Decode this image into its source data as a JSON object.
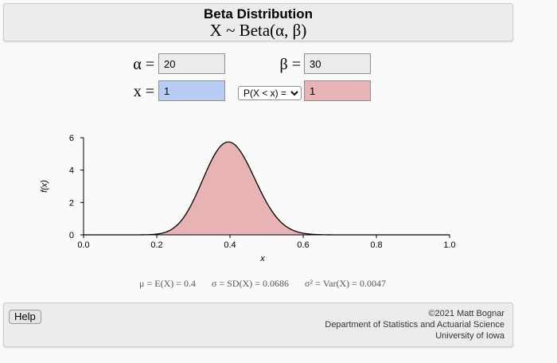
{
  "header": {
    "title": "Beta Distribution",
    "subtitle": "X ~ Beta(α, β)"
  },
  "inputs": {
    "alpha_symbol": "α =",
    "alpha_value": "20",
    "beta_symbol": "β =",
    "beta_value": "30",
    "x_symbol": "x =",
    "x_value": "1",
    "prob_type_selected": "P(X < x) =",
    "prob_value": "1"
  },
  "colors": {
    "x_field": "#b7cdf4",
    "prob_field": "#e7b3b5",
    "curve_fill": "#e7b3b5"
  },
  "chart_data": {
    "type": "area",
    "xlabel": "x",
    "ylabel": "f(x)",
    "xlim": [
      0,
      1
    ],
    "ylim": [
      0,
      6
    ],
    "x_ticks": [
      "0.0",
      "0.2",
      "0.4",
      "0.6",
      "0.8",
      "1.0"
    ],
    "y_ticks": [
      "0",
      "2",
      "4",
      "6"
    ],
    "alpha": 20,
    "beta": 30,
    "shaded_to_x": 1,
    "grid": false
  },
  "moments": {
    "mean": "μ = E(X) = 0.4",
    "sd": "σ = SD(X) = 0.0686",
    "var": "σ² = Var(X) = 0.0047"
  },
  "footer": {
    "help_label": "Help",
    "credit_line1": "©2021 Matt Bognar",
    "credit_line2": "Department of Statistics and Actuarial Science",
    "credit_line3": "University of Iowa"
  }
}
